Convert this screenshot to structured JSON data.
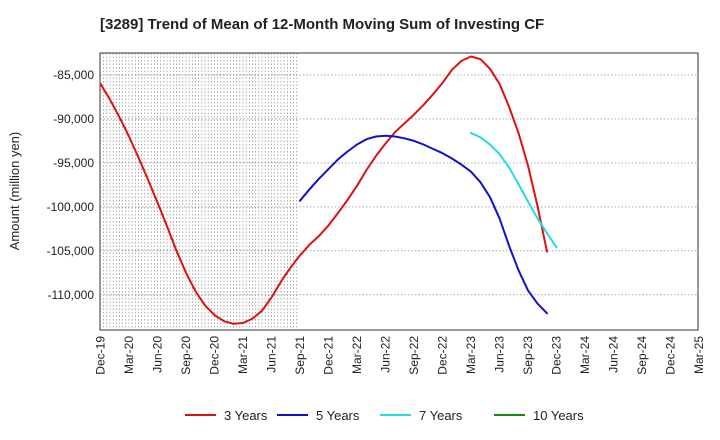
{
  "chart_data": {
    "type": "line",
    "title": "[3289]  Trend of Mean of 12-Month Moving Sum of Investing CF",
    "ylabel": "Amount (million yen)",
    "xlabel": "",
    "ylim": [
      -114000,
      -82500
    ],
    "yticks": [
      -85000,
      -90000,
      -95000,
      -100000,
      -105000,
      -110000
    ],
    "ytick_labels": [
      "-85,000",
      "-90,000",
      "-95,000",
      "-100,000",
      "-105,000",
      "-110,000"
    ],
    "x_categories": [
      "Dec-19",
      "Mar-20",
      "Jun-20",
      "Sep-20",
      "Dec-20",
      "Mar-21",
      "Jun-21",
      "Sep-21",
      "Dec-21",
      "Mar-22",
      "Jun-22",
      "Sep-22",
      "Dec-22",
      "Mar-23",
      "Jun-23",
      "Sep-23",
      "Dec-23",
      "Mar-24",
      "Jun-24",
      "Sep-24",
      "Dec-24",
      "Mar-25"
    ],
    "grid": true,
    "legend_position": "bottom",
    "series": [
      {
        "name": "3 Years",
        "color": "#dd1111",
        "start_index": 0,
        "values": [
          -86000,
          -87800,
          -89800,
          -92000,
          -94400,
          -96900,
          -99500,
          -102200,
          -105000,
          -107500,
          -109600,
          -111200,
          -112300,
          -113000,
          -113300,
          -113200,
          -112700,
          -111800,
          -110300,
          -108500,
          -106900,
          -105500,
          -104300,
          -103300,
          -102100,
          -100700,
          -99200,
          -97600,
          -95800,
          -94200,
          -92800,
          -91500,
          -90500,
          -89500,
          -88400,
          -87200,
          -85900,
          -84400,
          -83400,
          -82900,
          -83200,
          -84300,
          -86000,
          -88600,
          -91600,
          -95300,
          -99900,
          -105100
        ]
      },
      {
        "name": "5 Years",
        "color": "#1111cc",
        "start_index": 21,
        "values": [
          -99300,
          -98000,
          -96800,
          -95700,
          -94600,
          -93700,
          -92900,
          -92300,
          -92000,
          -91900,
          -92000,
          -92200,
          -92500,
          -92900,
          -93400,
          -93900,
          -94500,
          -95200,
          -96000,
          -97200,
          -98900,
          -101300,
          -104400,
          -107200,
          -109500,
          -111000,
          -112100
        ]
      },
      {
        "name": "7 Years",
        "color": "#22dddd",
        "start_index": 39,
        "values": [
          -91600,
          -92100,
          -92900,
          -94000,
          -95500,
          -97400,
          -99400,
          -101300,
          -103000,
          -104600
        ]
      },
      {
        "name": "10 Years",
        "color": "#118811",
        "start_index": 0,
        "values": []
      }
    ]
  }
}
